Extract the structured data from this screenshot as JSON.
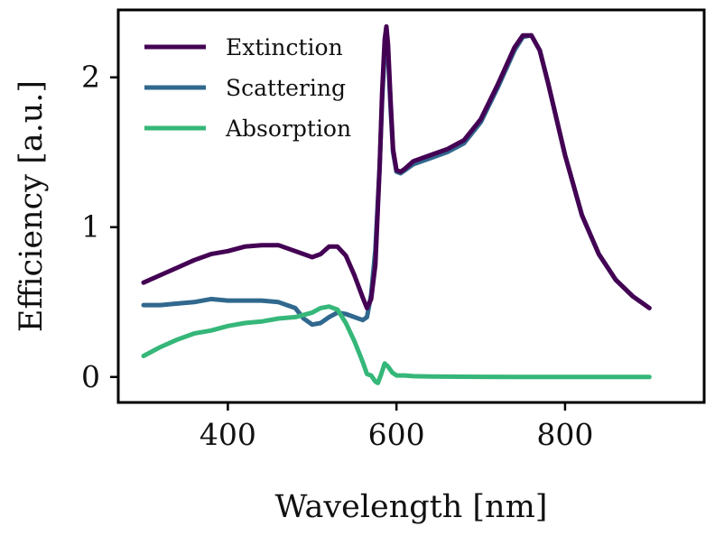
{
  "chart_data": {
    "type": "line",
    "title": "",
    "xlabel": "Wavelength [nm]",
    "ylabel": "Efficiency [a.u.]",
    "xlim": [
      270,
      965
    ],
    "ylim": [
      -0.17,
      2.45
    ],
    "x_ticks": [
      400,
      600,
      800
    ],
    "y_ticks": [
      0,
      1,
      2
    ],
    "grid": false,
    "legend_position": "top-left",
    "series": [
      {
        "name": "Extinction",
        "color": "#440154",
        "x": [
          300,
          320,
          340,
          360,
          380,
          400,
          420,
          440,
          460,
          480,
          500,
          510,
          520,
          530,
          540,
          550,
          560,
          565,
          570,
          575,
          580,
          583,
          586,
          588,
          590,
          593,
          596,
          600,
          605,
          610,
          620,
          640,
          660,
          680,
          700,
          720,
          740,
          750,
          760,
          770,
          780,
          800,
          820,
          840,
          860,
          880,
          900
        ],
        "y": [
          0.63,
          0.68,
          0.73,
          0.78,
          0.82,
          0.84,
          0.87,
          0.88,
          0.88,
          0.84,
          0.8,
          0.82,
          0.87,
          0.87,
          0.81,
          0.68,
          0.53,
          0.46,
          0.52,
          0.75,
          1.4,
          1.9,
          2.25,
          2.34,
          2.22,
          1.85,
          1.52,
          1.38,
          1.37,
          1.39,
          1.44,
          1.48,
          1.52,
          1.58,
          1.72,
          1.95,
          2.2,
          2.28,
          2.28,
          2.18,
          1.96,
          1.48,
          1.08,
          0.82,
          0.65,
          0.54,
          0.46
        ]
      },
      {
        "name": "Scattering",
        "color": "#31688e",
        "x": [
          300,
          320,
          340,
          360,
          380,
          400,
          420,
          440,
          460,
          480,
          490,
          500,
          510,
          520,
          530,
          540,
          550,
          560,
          565,
          570,
          575,
          580,
          583,
          586,
          588,
          590,
          593,
          596,
          600,
          605,
          610,
          620,
          640,
          660,
          680,
          700,
          720,
          740,
          750,
          760,
          770,
          780,
          800,
          820,
          840,
          860,
          880,
          900
        ],
        "y": [
          0.48,
          0.48,
          0.49,
          0.5,
          0.52,
          0.51,
          0.51,
          0.51,
          0.5,
          0.46,
          0.39,
          0.35,
          0.36,
          0.4,
          0.43,
          0.42,
          0.4,
          0.38,
          0.4,
          0.55,
          0.85,
          1.4,
          1.85,
          2.18,
          2.28,
          2.15,
          1.8,
          1.5,
          1.37,
          1.36,
          1.38,
          1.42,
          1.46,
          1.5,
          1.56,
          1.7,
          1.93,
          2.18,
          2.27,
          2.28,
          2.18,
          1.96,
          1.48,
          1.08,
          0.82,
          0.65,
          0.54,
          0.46
        ]
      },
      {
        "name": "Absorption",
        "color": "#35b779",
        "x": [
          300,
          320,
          340,
          360,
          380,
          400,
          420,
          440,
          460,
          480,
          500,
          510,
          520,
          530,
          540,
          550,
          560,
          565,
          570,
          575,
          578,
          582,
          586,
          590,
          595,
          600,
          610,
          620,
          640,
          660,
          700,
          750,
          800,
          850,
          900
        ],
        "y": [
          0.14,
          0.2,
          0.25,
          0.29,
          0.31,
          0.34,
          0.36,
          0.37,
          0.39,
          0.4,
          0.43,
          0.46,
          0.47,
          0.45,
          0.36,
          0.24,
          0.1,
          0.02,
          0.01,
          -0.03,
          -0.04,
          0.02,
          0.09,
          0.07,
          0.03,
          0.01,
          0.01,
          0.005,
          0.003,
          0.002,
          0.001,
          0.0,
          0.0,
          0.0,
          0.0
        ]
      }
    ]
  }
}
